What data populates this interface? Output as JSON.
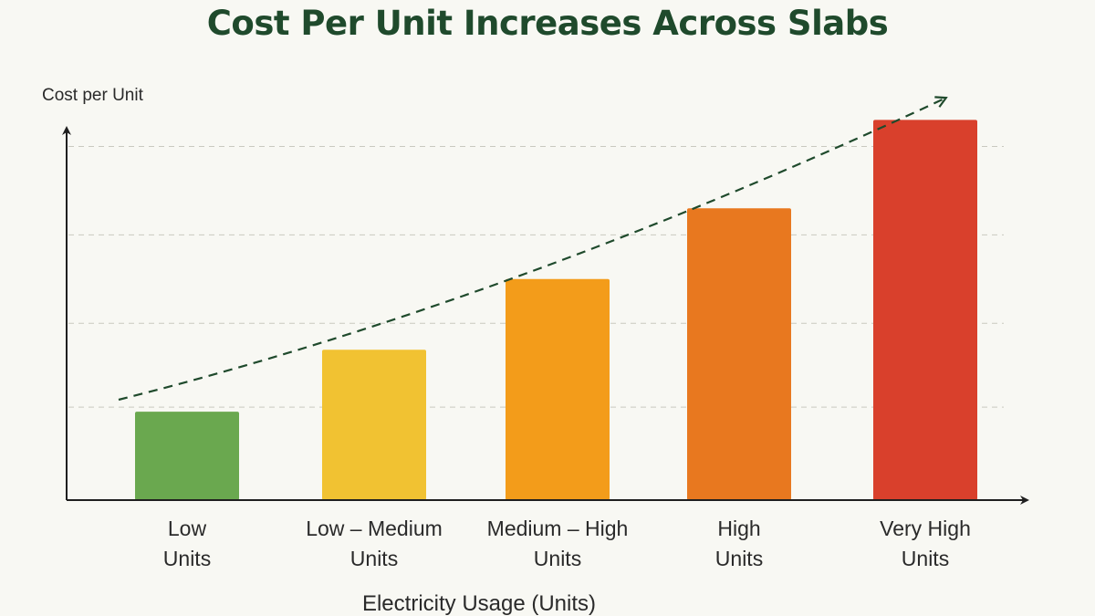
{
  "chart_data": {
    "type": "bar",
    "title": "Cost Per Unit Increases Across Slabs",
    "xlabel": "Electricity Usage (Units)",
    "ylabel": "Cost per Unit",
    "categories": [
      [
        "Low",
        "Units"
      ],
      [
        "Low – Medium",
        "Units"
      ],
      [
        "Medium – High",
        "Units"
      ],
      [
        "High",
        "Units"
      ],
      [
        "Very High",
        "Units"
      ]
    ],
    "values": [
      1,
      1.7,
      2.5,
      3.3,
      4.3
    ],
    "ylim": [
      0,
      4.5
    ],
    "y_tick_labels": false,
    "grid": "horizontal dashed",
    "colors": [
      "#6aa84f",
      "#f1c232",
      "#f39c1a",
      "#e8781f",
      "#d9402c"
    ],
    "trend_line": "dashed arrow, increasing"
  }
}
